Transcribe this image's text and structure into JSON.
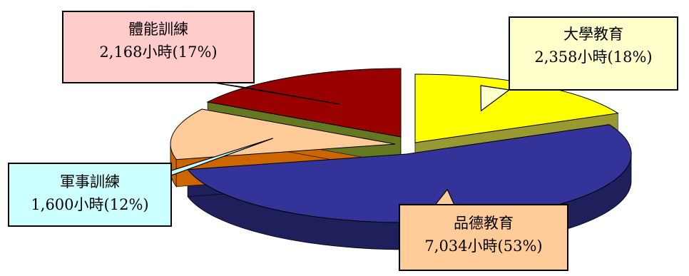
{
  "chart_data": {
    "type": "pie",
    "title": "",
    "slices": [
      {
        "name": "大學教育",
        "hours_label": "2,358小時(18%)",
        "value": 2358,
        "percent": 18,
        "top": "#ffff00",
        "side": "#999933",
        "box": "#ffffcc"
      },
      {
        "name": "品德教育",
        "hours_label": "7,034小時(53%)",
        "value": 7034,
        "percent": 53,
        "top": "#333399",
        "side": "#1f1f5c",
        "box": "#ffcc99"
      },
      {
        "name": "軍事訓練",
        "hours_label": "1,600小時(12%)",
        "value": 1600,
        "percent": 12,
        "top": "#ffcc99",
        "side": "#cc6600",
        "box": "#ccffff"
      },
      {
        "name": "體能訓練",
        "hours_label": "2,168小時(17%)",
        "value": 2168,
        "percent": 17,
        "top": "#990000",
        "side": "#667722",
        "box": "#ffcccc"
      }
    ]
  }
}
